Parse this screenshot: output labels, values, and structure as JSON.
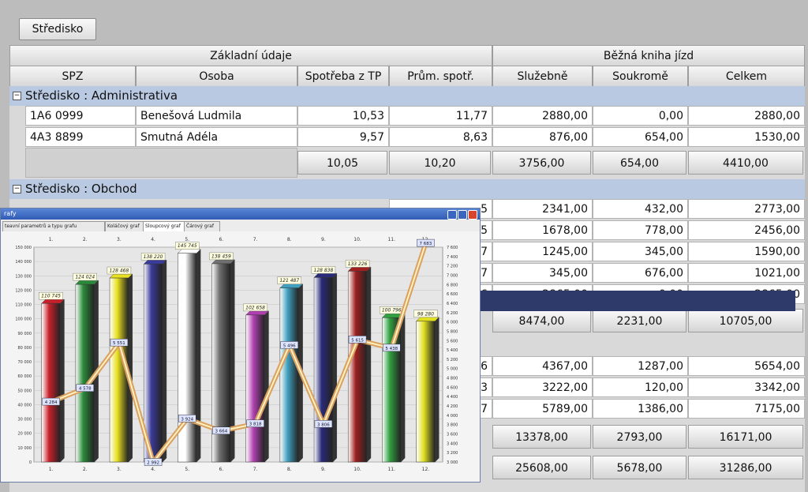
{
  "toolbar": {
    "stredisko_label": "Středisko"
  },
  "header": {
    "group1": "Základní údaje",
    "group2": "Běžná kniha jízd",
    "columns": [
      "SPZ",
      "Osoba",
      "Spotřeba z TP",
      "Prům. spotř.",
      "Služebně",
      "Soukromě",
      "Celkem"
    ]
  },
  "groups": [
    {
      "label": "Středisko : Administrativa",
      "rows": [
        {
          "spz": "1A6 0999",
          "osoba": "Benešová Ludmila",
          "tp": "10,53",
          "prum": "11,77",
          "sluz": "2880,00",
          "souk": "0,00",
          "celk": "2880,00"
        },
        {
          "spz": "4A3 8899",
          "osoba": "Smutná Adéla",
          "tp": "9,57",
          "prum": "8,63",
          "sluz": "876,00",
          "souk": "654,00",
          "celk": "1530,00"
        }
      ],
      "summary": {
        "tp": "10,05",
        "prum": "10,20",
        "sluz": "3756,00",
        "souk": "654,00",
        "celk": "4410,00"
      }
    },
    {
      "label": "Středisko : Obchod",
      "rows": [
        {
          "prum_tail": "5",
          "sluz": "2341,00",
          "souk": "432,00",
          "celk": "2773,00"
        },
        {
          "prum_tail": "5",
          "sluz": "1678,00",
          "souk": "778,00",
          "celk": "2456,00"
        },
        {
          "prum_tail": "7",
          "sluz": "1245,00",
          "souk": "345,00",
          "celk": "1590,00"
        },
        {
          "prum_tail": "7",
          "sluz": "345,00",
          "souk": "676,00",
          "celk": "1021,00"
        },
        {
          "prum_tail": "6",
          "sluz": "2865,00",
          "souk": "0,00",
          "celk": "2865,00"
        }
      ],
      "summary": {
        "sluz": "8474,00",
        "souk": "2231,00",
        "celk": "10705,00"
      }
    },
    {
      "rows": [
        {
          "prum_tail": "6",
          "sluz": "4367,00",
          "souk": "1287,00",
          "celk": "5654,00"
        },
        {
          "prum_tail": "3",
          "sluz": "3222,00",
          "souk": "120,00",
          "celk": "3342,00"
        },
        {
          "prum_tail": "7",
          "sluz": "5789,00",
          "souk": "1386,00",
          "celk": "7175,00"
        }
      ],
      "summary": {
        "sluz": "13378,00",
        "souk": "2793,00",
        "celk": "16171,00"
      }
    }
  ],
  "grand_total": {
    "sluz": "25608,00",
    "souk": "5678,00",
    "celk": "31286,00"
  },
  "chart_window": {
    "title": "rafy",
    "tabs": [
      "teavní parametrů a typu grafu",
      "Koláčový graf",
      "Sloupcový graf",
      "Čárový graf"
    ],
    "active_tab": 2
  },
  "chart_data": {
    "type": "bar",
    "categories": [
      "1.",
      "2.",
      "3.",
      "4.",
      "5.",
      "6.",
      "7.",
      "8.",
      "9.",
      "10.",
      "11.",
      "12."
    ],
    "top_labels": [
      "1.",
      "2.",
      "3.",
      "4.",
      "5.",
      "6.",
      "7.",
      "8.",
      "9.",
      "10.",
      "11.",
      "12."
    ],
    "bar_values": [
      110745,
      124024,
      128468,
      138220,
      145745,
      138459,
      102658,
      121487,
      128838,
      133226,
      100796,
      98280
    ],
    "bar_labels": [
      "110 745",
      "124 024",
      "128 468",
      "138 220",
      "145 745",
      "138 459",
      "102 658",
      "121 487",
      "128 838",
      "133 226",
      "100 796",
      "98 280"
    ],
    "bar_colors": [
      "#c8202a",
      "#2a8a3a",
      "#e8e020",
      "#3a3a9a",
      "#ffffff",
      "#707070",
      "#b040b0",
      "#40a0c0",
      "#2a2a7a",
      "#a02020",
      "#30a040",
      "#e0e020"
    ],
    "left_axis": {
      "min": 0,
      "max": 150000,
      "ticks": [
        "0",
        "10 000",
        "20 000",
        "30 000",
        "40 000",
        "50 000",
        "60 000",
        "70 000",
        "80 000",
        "90 000",
        "100 000",
        "110 000",
        "120 000",
        "130 000",
        "140 000",
        "150 000"
      ]
    },
    "right_axis": {
      "min": 3000,
      "max": 7600,
      "ticks": [
        "3 000",
        "3 200",
        "3 400",
        "3 600",
        "3 800",
        "4 000",
        "4 200",
        "4 400",
        "4 600",
        "4 800",
        "5 000",
        "5 200",
        "5 400",
        "5 600",
        "5 800",
        "6 000",
        "6 200",
        "6 400",
        "6 600",
        "6 800",
        "7 000",
        "7 200",
        "7 400",
        "7 600"
      ]
    },
    "line_values": [
      4284,
      4578,
      5551,
      2992,
      3924,
      3664,
      3818,
      5496,
      3806,
      5615,
      5438,
      7683
    ],
    "line_labels": [
      "4 284",
      "4 578",
      "5 551",
      "2 992",
      "3 924",
      "3 664",
      "3 818",
      "5 496",
      "3 806",
      "5 615",
      "5 438",
      "7 683"
    ],
    "grid": true
  }
}
